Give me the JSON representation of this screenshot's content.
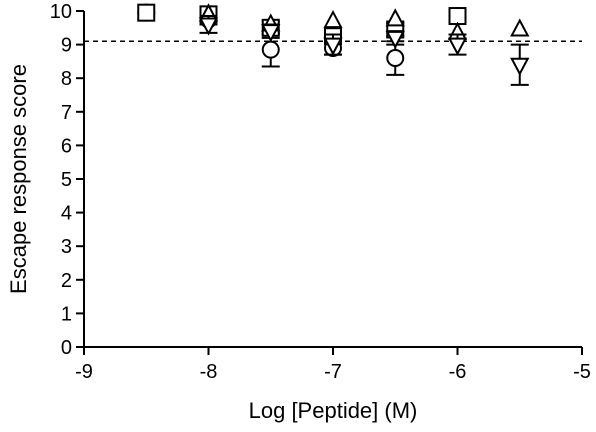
{
  "chart_data": {
    "type": "scatter",
    "title": "",
    "xlabel": "Log [Peptide] (M)",
    "ylabel": "Escape response score",
    "xlim": [
      -9,
      -5
    ],
    "ylim": [
      0,
      10
    ],
    "x_ticks": [
      -9,
      -8,
      -7,
      -6,
      -5
    ],
    "y_ticks": [
      0,
      1,
      2,
      3,
      4,
      5,
      6,
      7,
      8,
      9,
      10
    ],
    "reference_line": {
      "y": 9.1,
      "style": "dashed"
    },
    "grid": false,
    "legend": "none",
    "series": [
      {
        "marker": "circle",
        "points": [
          {
            "x": -8.5,
            "y": 9.95
          },
          {
            "x": -8,
            "y": 9.75,
            "err": 0.15
          },
          {
            "x": -7.5,
            "y": 8.85,
            "err": 0.5
          },
          {
            "x": -7,
            "y": 8.9,
            "err": 0.2
          },
          {
            "x": -6.5,
            "y": 8.6,
            "err": 0.5
          },
          {
            "x": -6,
            "y": 9.85
          }
        ]
      },
      {
        "marker": "square",
        "points": [
          {
            "x": -8.5,
            "y": 9.95
          },
          {
            "x": -8,
            "y": 9.9
          },
          {
            "x": -7.5,
            "y": 9.5,
            "err": 0.2
          },
          {
            "x": -7,
            "y": 9.25,
            "err": 0.2
          },
          {
            "x": -6.5,
            "y": 9.45,
            "err": 0.2
          },
          {
            "x": -6,
            "y": 9.85
          }
        ]
      },
      {
        "marker": "triangle-up",
        "points": [
          {
            "x": -8,
            "y": 9.9
          },
          {
            "x": -7.5,
            "y": 9.6
          },
          {
            "x": -7,
            "y": 9.7
          },
          {
            "x": -6.5,
            "y": 9.75
          },
          {
            "x": -6,
            "y": 9.35
          },
          {
            "x": -5.5,
            "y": 9.45
          }
        ]
      },
      {
        "marker": "triangle-down",
        "points": [
          {
            "x": -8,
            "y": 9.6,
            "err": 0.25
          },
          {
            "x": -7.5,
            "y": 9.4,
            "err": 0.2
          },
          {
            "x": -7,
            "y": 9.0,
            "err": 0.3
          },
          {
            "x": -6.5,
            "y": 9.2,
            "err": 0.2
          },
          {
            "x": -6,
            "y": 9.0,
            "err": 0.3
          },
          {
            "x": -5.5,
            "y": 8.4,
            "err": 0.6
          }
        ]
      }
    ]
  }
}
